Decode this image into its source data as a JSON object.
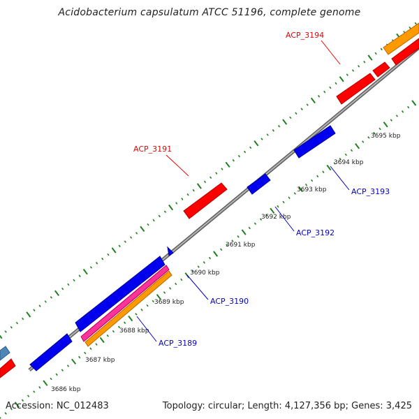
{
  "title": "Acidobacterium capsulatum ATCC 51196, complete genome",
  "footer": {
    "accession": "Accession: NC_012483",
    "stats": "Topology: circular; Length: 4,127,356 bp; Genes: 3,425"
  },
  "colors": {
    "backbone": "#8a8a8a",
    "tick": "#1e7f1e",
    "forward_gene": "#ff0000",
    "reverse_gene": "#0000ee",
    "orange": "#ff9900",
    "pink": "#ff3399",
    "steel": "#4f86b8",
    "forward_label": "#ee0000",
    "reverse_label": "#0000cc"
  },
  "ticks": [
    "3686 kbp",
    "3687 kbp",
    "3688 kbp",
    "3689 kbp",
    "3690 kbp",
    "3691 kbp",
    "3692 kbp",
    "3693 kbp",
    "3694 kbp",
    "3695 kbp"
  ],
  "gene_labels": [
    {
      "id": "ACP_3194",
      "strand": "forward"
    },
    {
      "id": "ACP_3191",
      "strand": "forward"
    },
    {
      "id": "ACP_3193",
      "strand": "reverse"
    },
    {
      "id": "ACP_3192",
      "strand": "reverse"
    },
    {
      "id": "ACP_3190",
      "strand": "reverse"
    },
    {
      "id": "ACP_3189",
      "strand": "reverse"
    }
  ]
}
